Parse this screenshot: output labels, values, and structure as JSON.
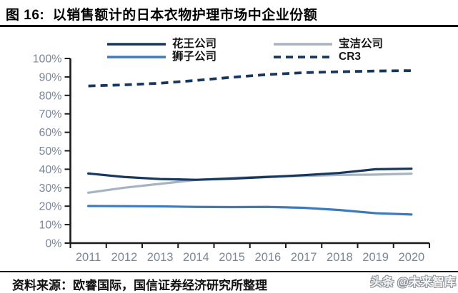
{
  "title": "图 16:  以销售额计的日本衣物护理市场中企业份额",
  "source_note": "资料来源：欧睿国际，国信证券经济研究所整理",
  "watermark": "头条 @未来智库",
  "colors": {
    "kao_navy": "#17375E",
    "pg_gray": "#A7B3C1",
    "lion_blue": "#3D7ABD",
    "cr3_navy": "#17375E",
    "axis_label_gray": "#7B8799",
    "axis_black": "#1B1B1B"
  },
  "chart_data": {
    "type": "line",
    "title": "以销售额计的日本衣物护理市场中企业份额",
    "x": [
      "2011",
      "2012",
      "2013",
      "2014",
      "2015",
      "2016",
      "2017",
      "2018",
      "2019",
      "2020"
    ],
    "y_tick_labels": [
      "0%",
      "10%",
      "20%",
      "30%",
      "40%",
      "50%",
      "60%",
      "70%",
      "80%",
      "90%",
      "100%"
    ],
    "ylim": [
      0,
      100
    ],
    "ytick_step": 10,
    "grid": false,
    "legend_position": "top",
    "series": [
      {
        "name": "花王公司",
        "color": "#17375E",
        "style": "solid",
        "values": [
          37.7,
          35.8,
          34.7,
          34.3,
          34.9,
          35.8,
          36.8,
          38.0,
          40.0,
          40.3
        ]
      },
      {
        "name": "宝洁公司",
        "color": "#A7B3C1",
        "style": "solid",
        "values": [
          27.3,
          30.0,
          32.1,
          34.2,
          35.3,
          36.0,
          36.4,
          36.9,
          37.1,
          37.6
        ]
      },
      {
        "name": "狮子公司",
        "color": "#3D7ABD",
        "style": "solid",
        "values": [
          20.1,
          20.0,
          19.9,
          19.6,
          19.5,
          19.6,
          19.1,
          17.9,
          16.2,
          15.5
        ]
      },
      {
        "name": "CR3",
        "color": "#17375E",
        "style": "dashed",
        "values": [
          85.1,
          85.7,
          86.6,
          88.1,
          89.8,
          91.3,
          92.3,
          92.8,
          93.2,
          93.4
        ]
      }
    ]
  }
}
